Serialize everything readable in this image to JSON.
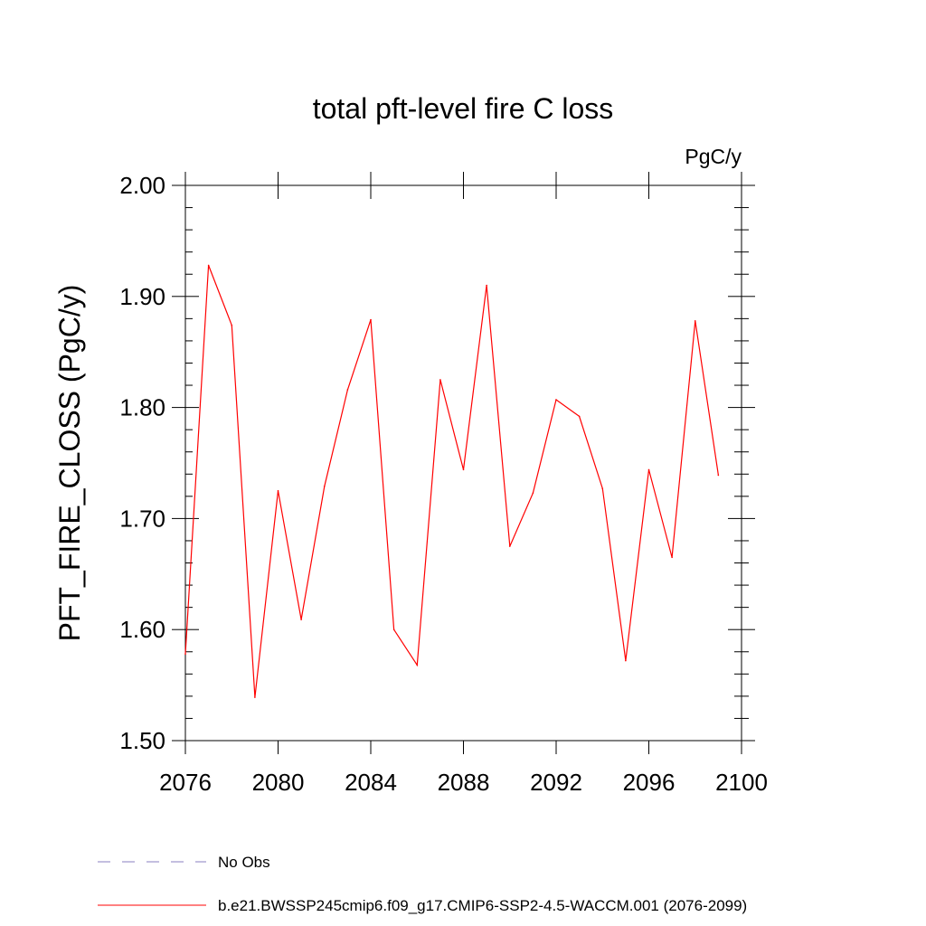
{
  "chart_data": {
    "type": "line",
    "title": "total pft-level fire C loss",
    "units_label": "PgC/y",
    "ylabel": "PFT_FIRE_CLOSS  (PgC/y)",
    "xlabel": "",
    "xlim": [
      2076,
      2100
    ],
    "ylim": [
      1.5,
      2.0
    ],
    "x_ticks": [
      2076,
      2080,
      2084,
      2088,
      2092,
      2096,
      2100
    ],
    "x_tick_labels": [
      "2076",
      "2080",
      "2084",
      "2088",
      "2092",
      "2096",
      "2100"
    ],
    "y_ticks": [
      1.5,
      1.6,
      1.7,
      1.8,
      1.9,
      2.0
    ],
    "y_tick_labels": [
      "1.50",
      "1.60",
      "1.70",
      "1.80",
      "1.90",
      "2.00"
    ],
    "grid": false,
    "legend_position": "bottom",
    "series": [
      {
        "name": "b.e21.BWSSP245cmip6.f09_g17.CMIP6-SSP2-4.5-WACCM.001 (2076-2099)",
        "color": "#ff0000",
        "style": "solid",
        "x": [
          2076,
          2077,
          2078,
          2079,
          2080,
          2081,
          2082,
          2083,
          2084,
          2085,
          2086,
          2087,
          2088,
          2089,
          2090,
          2091,
          2092,
          2093,
          2094,
          2095,
          2096,
          2097,
          2098,
          2099
        ],
        "values": [
          1.578,
          1.928,
          1.874,
          1.539,
          1.725,
          1.609,
          1.729,
          1.816,
          1.879,
          1.6,
          1.568,
          1.825,
          1.744,
          1.91,
          1.675,
          1.723,
          1.807,
          1.792,
          1.727,
          1.572,
          1.744,
          1.665,
          1.878,
          1.739
        ]
      }
    ],
    "legend": [
      {
        "label": "No Obs",
        "color": "#8a7fc0",
        "style": "dashed"
      },
      {
        "label": "b.e21.BWSSP245cmip6.f09_g17.CMIP6-SSP2-4.5-WACCM.001 (2076-2099)",
        "color": "#ff0000",
        "style": "solid"
      }
    ]
  }
}
